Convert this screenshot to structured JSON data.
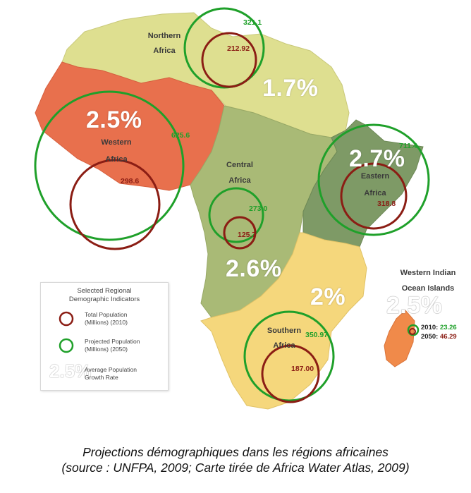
{
  "regions": {
    "northern": {
      "label_line1": "Northern",
      "label_line2": "Africa",
      "pop_2010": "212.92",
      "pop_2050": "321.1",
      "rate": "1.7%"
    },
    "western": {
      "label_line1": "Western",
      "label_line2": "Africa",
      "pop_2010": "298.6",
      "pop_2050": "625.6",
      "rate": "2.5%"
    },
    "central": {
      "label_line1": "Central",
      "label_line2": "Africa",
      "pop_2010": "125.7",
      "pop_2050": "273.0",
      "rate": "2.6%"
    },
    "eastern": {
      "label_line1": "Eastern",
      "label_line2": "Africa",
      "pop_2010": "318.8",
      "pop_2050": "711.4",
      "rate": "2.7%"
    },
    "southern": {
      "label_line1": "Southern",
      "label_line2": "Africa",
      "pop_2010": "187.00",
      "pop_2050": "350.97",
      "rate": "2%"
    },
    "indian_ocean": {
      "label_line1": "Western Indian",
      "label_line2": "Ocean Islands",
      "rate": "2.5%",
      "line_2010_label": "2010: ",
      "line_2010_value": "23.26",
      "line_2050_label": "2050: ",
      "line_2050_value": "46.29"
    }
  },
  "legend": {
    "title_line1": "Selected Regional",
    "title_line2": "Demographic Indicators",
    "total_label_line1": "Total Population",
    "total_label_line2": "(Millions) (2010)",
    "projected_label_line1": "Projected Population",
    "projected_label_line2": "(Millions) (2050)",
    "rate_sample": "2.5%",
    "rate_label_line1": "Average Population",
    "rate_label_line2": "Growth Rate"
  },
  "colors": {
    "northern_fill": "#dedf90",
    "western_fill": "#e8704d",
    "central_fill": "#a9ba76",
    "eastern_fill": "#7e9a66",
    "southern_fill": "#f5d77c",
    "madagascar_fill": "#f08a4a",
    "circle_2010": "#8b1d14",
    "circle_2050": "#1fa02a"
  },
  "caption": {
    "line1": "Projections démographiques dans les régions africaines",
    "line2": "(source : UNFPA, 2009; Carte tirée de Africa Water Atlas, 2009)"
  }
}
